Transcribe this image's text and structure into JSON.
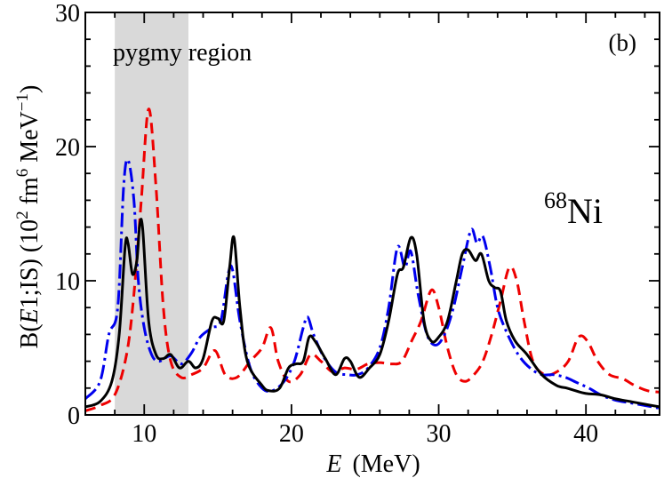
{
  "chart_data": {
    "type": "line",
    "panel_label": "(b)",
    "nucleus": {
      "mass_number": "68",
      "symbol": "Ni"
    },
    "shaded_region": {
      "label": "pygmy region",
      "x_range": [
        8,
        13
      ]
    },
    "xlabel": {
      "symbol": "E",
      "unit": "(MeV)"
    },
    "ylabel": {
      "prefix": "B(",
      "italic": "E",
      "suffix": "1;IS)  (10",
      "exp1": "2",
      "mid": " fm",
      "exp2": "6",
      "mid2": " MeV",
      "exp3": "−1",
      "end": ")"
    },
    "xlim": [
      6,
      45
    ],
    "ylim": [
      0,
      30
    ],
    "x_ticks": [
      10,
      20,
      30,
      40
    ],
    "x_tick_labels": [
      "10",
      "20",
      "30",
      "40"
    ],
    "y_ticks": [
      0,
      10,
      20,
      30
    ],
    "y_tick_labels": [
      "0",
      "10",
      "20",
      "30"
    ],
    "series": [
      {
        "name": "solid",
        "color": "#000000",
        "dash": "",
        "points": [
          [
            6,
            0.6
          ],
          [
            7,
            1.0
          ],
          [
            7.8,
            2.5
          ],
          [
            8.3,
            6
          ],
          [
            8.7,
            12.5
          ],
          [
            8.9,
            12.8
          ],
          [
            9.2,
            10.5
          ],
          [
            9.5,
            11.5
          ],
          [
            9.7,
            14.2
          ],
          [
            9.9,
            13.8
          ],
          [
            10.3,
            7
          ],
          [
            10.8,
            4.5
          ],
          [
            11.3,
            4.2
          ],
          [
            11.8,
            4.5
          ],
          [
            12.4,
            3.5
          ],
          [
            13,
            4
          ],
          [
            13.5,
            3.5
          ],
          [
            14,
            4.2
          ],
          [
            14.6,
            7
          ],
          [
            15,
            7.2
          ],
          [
            15.4,
            7
          ],
          [
            15.8,
            11
          ],
          [
            16.1,
            13.2
          ],
          [
            16.5,
            8
          ],
          [
            17,
            4
          ],
          [
            18,
            2.2
          ],
          [
            18.5,
            1.8
          ],
          [
            19.2,
            2
          ],
          [
            19.8,
            3.5
          ],
          [
            20.3,
            3.8
          ],
          [
            20.8,
            4
          ],
          [
            21.2,
            5.8
          ],
          [
            21.6,
            5.5
          ],
          [
            22.3,
            4.2
          ],
          [
            23,
            3
          ],
          [
            23.6,
            4.2
          ],
          [
            24,
            4
          ],
          [
            24.6,
            2.8
          ],
          [
            25.3,
            3.5
          ],
          [
            26,
            4.5
          ],
          [
            26.6,
            7
          ],
          [
            27.2,
            10.5
          ],
          [
            27.6,
            11
          ],
          [
            28.1,
            13.2
          ],
          [
            28.5,
            12
          ],
          [
            29,
            7
          ],
          [
            29.5,
            5.5
          ],
          [
            30,
            5.8
          ],
          [
            30.6,
            7
          ],
          [
            31.2,
            10
          ],
          [
            31.6,
            12
          ],
          [
            32,
            12.3
          ],
          [
            32.5,
            11.5
          ],
          [
            32.9,
            12
          ],
          [
            33.4,
            10
          ],
          [
            33.8,
            9.5
          ],
          [
            34.2,
            9.2
          ],
          [
            34.6,
            7
          ],
          [
            35.2,
            5.5
          ],
          [
            36,
            4.5
          ],
          [
            37,
            3
          ],
          [
            38,
            2.2
          ],
          [
            38.7,
            2
          ],
          [
            39.3,
            1.8
          ],
          [
            40,
            1.6
          ],
          [
            41,
            1.5
          ],
          [
            42,
            1.2
          ],
          [
            43,
            1
          ],
          [
            44,
            0.8
          ],
          [
            45,
            0.6
          ]
        ]
      },
      {
        "name": "dash-dot",
        "color": "#0000ee",
        "dash": "16 5 3 5",
        "points": [
          [
            6,
            1.2
          ],
          [
            7,
            2.5
          ],
          [
            7.6,
            6
          ],
          [
            8.2,
            8
          ],
          [
            8.6,
            17
          ],
          [
            8.9,
            19
          ],
          [
            9.3,
            16
          ],
          [
            9.6,
            10
          ],
          [
            10,
            6.5
          ],
          [
            10.5,
            4.5
          ],
          [
            11,
            4
          ],
          [
            11.8,
            4.4
          ],
          [
            12.5,
            3.8
          ],
          [
            13.2,
            4.6
          ],
          [
            13.8,
            5.8
          ],
          [
            14.6,
            6.5
          ],
          [
            15.2,
            7
          ],
          [
            15.7,
            10.5
          ],
          [
            16,
            10.8
          ],
          [
            16.5,
            7
          ],
          [
            17.2,
            3.5
          ],
          [
            18,
            2
          ],
          [
            18.7,
            1.8
          ],
          [
            19.5,
            2.5
          ],
          [
            20.2,
            4
          ],
          [
            20.8,
            6.5
          ],
          [
            21.1,
            7.3
          ],
          [
            21.5,
            6
          ],
          [
            22.2,
            4.3
          ],
          [
            23,
            3.2
          ],
          [
            23.8,
            3
          ],
          [
            24.5,
            3
          ],
          [
            25.2,
            3.5
          ],
          [
            26,
            5
          ],
          [
            26.6,
            8
          ],
          [
            27.2,
            12.5
          ],
          [
            27.7,
            11
          ],
          [
            28.1,
            12.2
          ],
          [
            28.6,
            9
          ],
          [
            29.2,
            6
          ],
          [
            29.8,
            5.2
          ],
          [
            30.4,
            6
          ],
          [
            31,
            8
          ],
          [
            31.6,
            11
          ],
          [
            32.2,
            13.8
          ],
          [
            32.6,
            12.8
          ],
          [
            33,
            13.3
          ],
          [
            33.5,
            11
          ],
          [
            34,
            8
          ],
          [
            34.6,
            6.2
          ],
          [
            35.4,
            4.5
          ],
          [
            36.2,
            3.5
          ],
          [
            37,
            3
          ],
          [
            37.8,
            3
          ],
          [
            38.6,
            2.8
          ],
          [
            39.4,
            2.4
          ],
          [
            40.2,
            2
          ],
          [
            41,
            1.5
          ],
          [
            42,
            1.1
          ],
          [
            43,
            0.9
          ],
          [
            44,
            0.7
          ],
          [
            45,
            0.5
          ]
        ]
      },
      {
        "name": "dashed",
        "color": "#ee0000",
        "dash": "12 7",
        "points": [
          [
            6,
            0.3
          ],
          [
            7,
            0.7
          ],
          [
            8,
            1.5
          ],
          [
            8.8,
            4.5
          ],
          [
            9.3,
            9
          ],
          [
            9.8,
            16
          ],
          [
            10.3,
            22.8
          ],
          [
            10.8,
            17
          ],
          [
            11.3,
            8
          ],
          [
            11.8,
            4
          ],
          [
            12.5,
            2.8
          ],
          [
            13.2,
            3
          ],
          [
            14,
            3.5
          ],
          [
            14.8,
            4.8
          ],
          [
            15.5,
            3
          ],
          [
            16.3,
            2.8
          ],
          [
            17.2,
            4
          ],
          [
            18,
            5
          ],
          [
            18.6,
            6.5
          ],
          [
            19.1,
            4
          ],
          [
            19.8,
            2.5
          ],
          [
            20.6,
            3
          ],
          [
            21.3,
            4.5
          ],
          [
            22,
            4
          ],
          [
            22.8,
            3.2
          ],
          [
            23.6,
            3.5
          ],
          [
            24.4,
            3.4
          ],
          [
            25.2,
            3.8
          ],
          [
            26,
            3.9
          ],
          [
            26.8,
            3.8
          ],
          [
            27.5,
            4
          ],
          [
            28.2,
            5.6
          ],
          [
            28.8,
            7
          ],
          [
            29.5,
            9.3
          ],
          [
            30,
            8
          ],
          [
            30.6,
            5
          ],
          [
            31.2,
            3
          ],
          [
            31.8,
            2.5
          ],
          [
            32.4,
            3
          ],
          [
            33,
            4
          ],
          [
            33.6,
            6
          ],
          [
            34.2,
            8.5
          ],
          [
            34.8,
            11
          ],
          [
            35.3,
            10
          ],
          [
            35.8,
            7
          ],
          [
            36.4,
            4
          ],
          [
            37.2,
            3
          ],
          [
            38,
            3.2
          ],
          [
            38.8,
            4
          ],
          [
            39.5,
            5.8
          ],
          [
            40.1,
            5.5
          ],
          [
            40.8,
            4
          ],
          [
            41.6,
            3
          ],
          [
            42.5,
            2.7
          ],
          [
            43.3,
            2.2
          ],
          [
            44.2,
            1.8
          ],
          [
            45,
            1.7
          ]
        ]
      }
    ]
  }
}
